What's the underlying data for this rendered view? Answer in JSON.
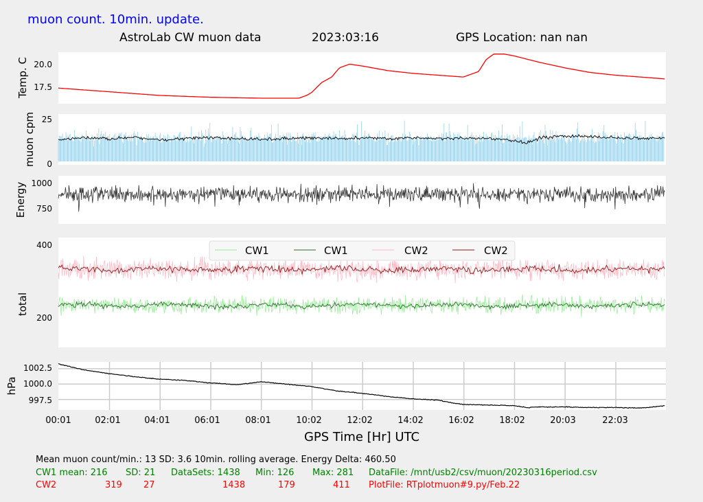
{
  "header": {
    "update_note": "muon count.  10min. update.",
    "title": "AstroLab CW muon data",
    "date": "2023:03:16",
    "gps_location": "GPS Location: nan   nan"
  },
  "colors": {
    "temperature": "#ff0000",
    "muon_bars": "#87ceeb",
    "muon_avg": "#000000",
    "energy": "#333333",
    "cw1_raw": "#90ee90",
    "cw1_avg": "#2e6b2e",
    "cw2_raw": "#ffb6c1",
    "cw2_avg": "#8b1a1a",
    "pressure": "#000000",
    "panel_bg": "#ffffff",
    "grid": "#cccccc"
  },
  "chart_data": [
    {
      "type": "line",
      "panel": "temperature",
      "ylabel": "Temp. C",
      "yticks": [
        "17.5",
        "20.0"
      ],
      "ylim": [
        15.7,
        21.3
      ],
      "x_hours": [
        0,
        1,
        2,
        4,
        6,
        8,
        9,
        9.5,
        9.8,
        10,
        10.4,
        10.8,
        11.1,
        11.5,
        12,
        13,
        14,
        15,
        16,
        16.6,
        16.9,
        17.2,
        17.6,
        18,
        19,
        20,
        21,
        22,
        23,
        23.95
      ],
      "values": [
        17.4,
        17.2,
        17.0,
        16.6,
        16.4,
        16.3,
        16.3,
        16.3,
        16.6,
        16.9,
        18.0,
        18.6,
        19.6,
        20.0,
        19.8,
        19.3,
        19.0,
        18.8,
        18.6,
        19.2,
        20.5,
        21.1,
        21.1,
        20.9,
        20.2,
        19.6,
        19.1,
        18.8,
        18.6,
        18.4
      ]
    },
    {
      "type": "bar",
      "panel": "muon_cpm",
      "ylabel": "muon cpm",
      "yticks": [
        "0",
        "25"
      ],
      "ylim": [
        0,
        26
      ],
      "mean": 13,
      "sd": 3.6,
      "avg_x_hours": [
        0,
        1,
        2,
        3,
        4,
        5,
        6,
        7,
        8,
        9,
        10,
        11,
        12,
        13,
        14,
        15,
        16,
        17,
        18,
        18.5,
        19,
        20,
        21,
        22,
        23,
        23.95
      ],
      "avg_values": [
        12,
        13,
        12.5,
        13,
        12,
        12.5,
        13,
        12.5,
        12,
        12.5,
        13,
        12.5,
        13,
        12.5,
        13,
        12.5,
        12.5,
        12.5,
        11.5,
        10,
        13,
        14,
        13.5,
        13,
        12.5,
        13
      ]
    },
    {
      "type": "line",
      "panel": "energy",
      "ylabel": "Energy",
      "yticks": [
        "750",
        "1000"
      ],
      "ylim": [
        610,
        1060
      ],
      "center": 890,
      "spread": 70
    },
    {
      "type": "line",
      "panel": "total",
      "ylabel": "total",
      "yticks": [
        "200",
        "400"
      ],
      "ylim": [
        95,
        410
      ],
      "legend": [
        "CW1",
        "CW1",
        "CW2",
        "CW2"
      ],
      "legend_position": "top-center",
      "series": [
        {
          "name": "CW1",
          "mean": 216,
          "sd": 21,
          "min": 126,
          "max": 281
        },
        {
          "name": "CW2",
          "mean": 319,
          "sd": 27,
          "min": 179,
          "max": 411
        }
      ]
    },
    {
      "type": "line",
      "panel": "pressure",
      "ylabel": "hPa",
      "yticks": [
        "997.5",
        "1000.0",
        "1002.5"
      ],
      "ylim": [
        995.8,
        1003.6
      ],
      "grid": true,
      "x_hours": [
        0,
        0.5,
        1,
        1.5,
        2,
        3,
        4,
        5,
        6,
        7,
        7.5,
        8,
        9,
        10,
        11,
        12,
        13,
        14,
        15,
        15.5,
        16,
        17,
        18,
        18.5,
        19,
        20,
        21,
        22,
        23,
        23.5,
        23.95
      ],
      "values": [
        1003.3,
        1002.8,
        1002.3,
        1002.0,
        1001.7,
        1001.2,
        1000.8,
        1000.6,
        1000.2,
        999.9,
        1000.1,
        1000.4,
        1000.0,
        999.6,
        998.9,
        998.5,
        998.0,
        997.6,
        997.4,
        997.0,
        996.7,
        996.6,
        996.5,
        996.2,
        996.3,
        996.3,
        996.2,
        996.2,
        996.1,
        996.3,
        996.5
      ],
      "xticks": [
        "00:01",
        "02:01",
        "04:01",
        "06:01",
        "08:01",
        "10:02",
        "12:02",
        "14:02",
        "16:02",
        "18:02",
        "20:03",
        "22:03"
      ],
      "xlabel": "GPS Time  [Hr] UTC"
    }
  ],
  "footer": {
    "line1": "Mean muon count/min.: 13  SD: 3.6   10min. rolling average.    Energy Delta:  460.50",
    "cw1": {
      "label": "CW1 mean: 216",
      "sd": "SD: 21",
      "datasets": "DataSets: 1438",
      "min": "Min: 126",
      "max": "Max: 281",
      "file": "DataFile: /mnt/usb2/csv/muon/20230316period.csv"
    },
    "cw2": {
      "label": "CW2",
      "mean": "319",
      "sd": "27",
      "datasets": "1438",
      "min": "179",
      "max": "411",
      "file": "PlotFile: RTplotmuon#9.py/Feb.22"
    }
  }
}
